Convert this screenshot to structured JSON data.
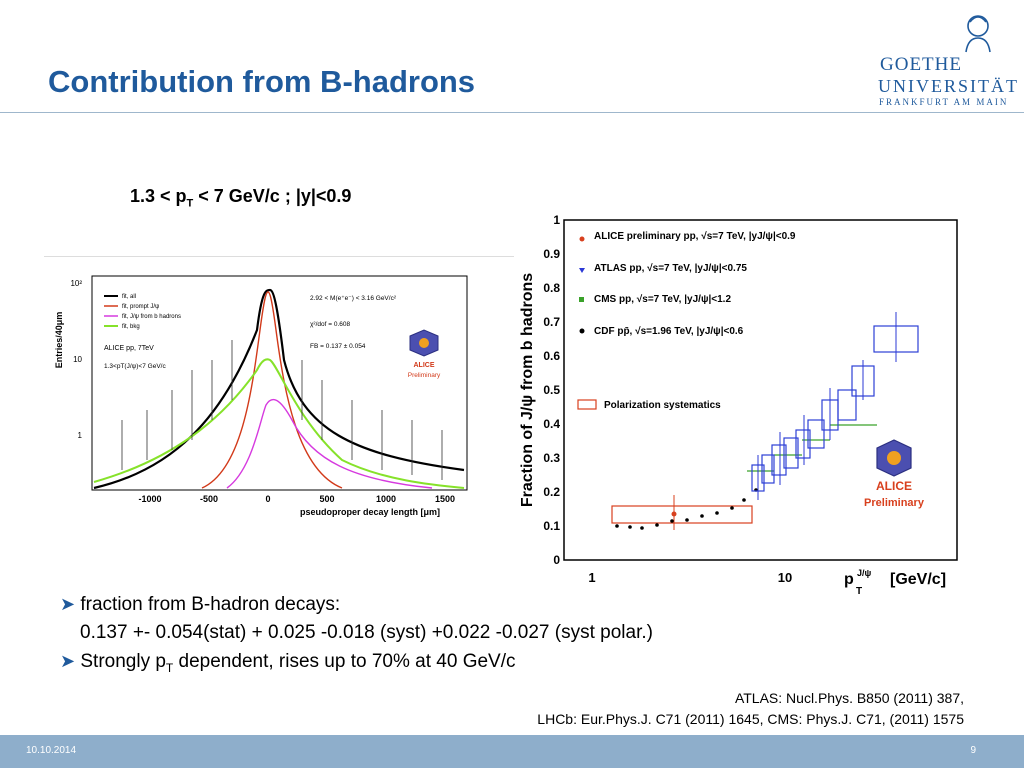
{
  "slide": {
    "title": "Contribution from B-hadrons",
    "kinematics": {
      "pre": "1.3 < p",
      "sub": "T",
      "post": " < 7 GeV/c  ;   |y|<0.9"
    }
  },
  "logo": {
    "line1": "GOETHE",
    "line2": "UNIVERSITÄT",
    "line3": "FRANKFURT AM MAIN"
  },
  "left_plot": {
    "ylabel": "Entries/40μm",
    "xlabel": "pseudoproper decay length [μm]",
    "yticks": [
      "10²",
      "10",
      "1"
    ],
    "xticks": [
      "-1000",
      "-500",
      "0",
      "500",
      "1000",
      "1500"
    ],
    "legend": [
      "fit, all",
      "fit, prompt J/ψ",
      "fit, J/ψ from b hadrons",
      "fit, bkg"
    ],
    "legend_colors": [
      "#000000",
      "#d23a1a",
      "#d63adf",
      "#86e22a"
    ],
    "info1": "ALICE pp, 7TeV",
    "info2": "1.3<pT(J/ψ)<7 GeV/c",
    "annot1": "2.92 < M(e⁺e⁻) < 3.16 GeV/c²",
    "annot2": "χ²/dof = 0.608",
    "annot3": "FB = 0.137 ± 0.054",
    "badge1": "ALICE",
    "badge2": "Preliminary"
  },
  "right_plot": {
    "ylabel": "Fraction of J/ψ from b hadrons",
    "xlabel": "p",
    "xlabel_sup": "J/ψ",
    "xlabel_sub": "T",
    "xlabel_unit": "[GeV/c]",
    "yticks": [
      "0",
      "0.1",
      "0.2",
      "0.3",
      "0.4",
      "0.5",
      "0.6",
      "0.7",
      "0.8",
      "0.9",
      "1"
    ],
    "xticks": [
      "1",
      "10"
    ],
    "legend": [
      "ALICE preliminary  pp, √s=7 TeV,  |yJ/ψ|<0.9",
      "ATLAS  pp, √s=7 TeV,  |yJ/ψ|<0.75",
      "CMS  pp, √s=7 TeV,  |yJ/ψ|<1.2",
      "CDF  pp̄, √s=1.96 TeV,  |yJ/ψ|<0.6"
    ],
    "legend_colors": [
      "#d8401e",
      "#2b38d6",
      "#3aa22a",
      "#000000"
    ],
    "polarization": "Polarization systematics",
    "badge1": "ALICE",
    "badge2": "Preliminary"
  },
  "bullets": {
    "b1": "fraction from B-hadron decays:",
    "b1_detail": "0.137 +- 0.054(stat) + 0.025 -0.018 (syst)  +0.022 -0.027 (syst polar.)",
    "b2_pre": "Strongly p",
    "b2_sub": "T",
    "b2_post": " dependent, rises up to 70% at 40 GeV/c"
  },
  "references": {
    "line1": "ATLAS: Nucl.Phys. B850 (2011) 387,",
    "line2": "LHCb: Eur.Phys.J. C71 (2011) 1645, CMS: Phys.J. C71, (2011) 1575"
  },
  "footer": {
    "date": "10.10.2014",
    "page": "9"
  }
}
